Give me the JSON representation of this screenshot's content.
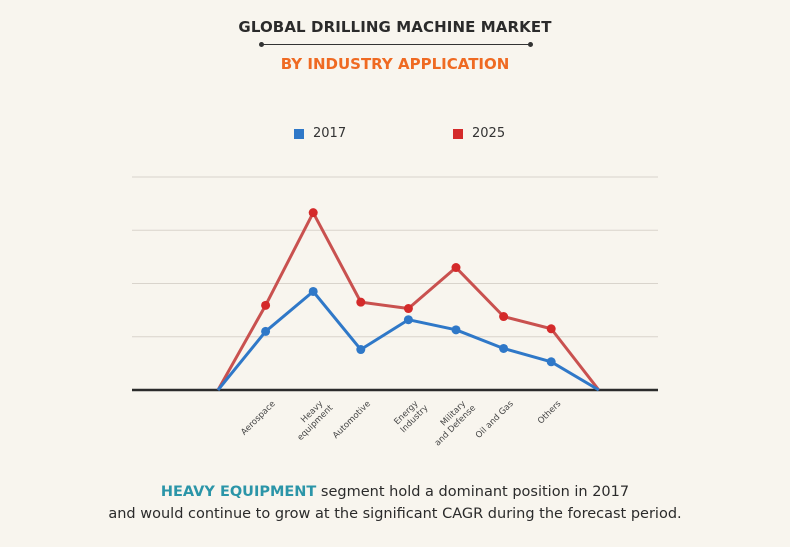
{
  "header": {
    "title": "GLOBAL DRILLING MACHINE MARKET",
    "subtitle": "BY INDUSTRY APPLICATION"
  },
  "colors": {
    "background": "#f8f5ee",
    "series_2017": "#2f78c8",
    "series_2025_marker": "#d42a2a",
    "series_2025_line": "#c9514f",
    "subtitle": "#ef6a22",
    "highlight": "#2b95a8",
    "gridline": "#d9d4cc",
    "axis": "#2b2b2b"
  },
  "caption": {
    "highlight": "HEAVY EQUIPMENT",
    "line1_rest": " segment hold a dominant position in 2017",
    "line2": "and would continue to grow at the significant CAGR during the forecast period."
  },
  "chart_data": {
    "type": "line",
    "title": "GLOBAL DRILLING MACHINE MARKET",
    "subtitle": "BY INDUSTRY APPLICATION",
    "xlabel": "",
    "ylabel": "",
    "y_units": "relative gridline units (no y-axis labels shown)",
    "ylim": [
      0,
      4
    ],
    "gridlines": [
      1,
      2,
      3,
      4
    ],
    "grid": true,
    "legend": {
      "placement": "top-center",
      "entries": [
        "2017",
        "2025"
      ]
    },
    "categories": [
      "",
      "Aerospace",
      "Heavy equipment",
      "Automotive",
      "Energy Industry",
      "Military and Defense",
      "Oil and Gas",
      "Others",
      ""
    ],
    "tick_labels": [
      [
        "Aerospace"
      ],
      [
        "Heavy",
        "equipment"
      ],
      [
        "Automotive"
      ],
      [
        "Energy",
        "Industry"
      ],
      [
        "Military",
        "and Defense"
      ],
      [
        "Oil and Gas"
      ],
      [
        "Others"
      ]
    ],
    "series": [
      {
        "name": "2017",
        "values": [
          0,
          1.1,
          1.85,
          0.76,
          1.32,
          1.13,
          0.78,
          0.53,
          0
        ],
        "markers": [
          false,
          true,
          true,
          true,
          true,
          true,
          true,
          true,
          false
        ]
      },
      {
        "name": "2025",
        "values": [
          0,
          1.59,
          3.33,
          1.65,
          1.53,
          2.3,
          1.38,
          1.15,
          0
        ],
        "markers": [
          false,
          true,
          true,
          true,
          true,
          true,
          true,
          true,
          false
        ]
      }
    ]
  }
}
